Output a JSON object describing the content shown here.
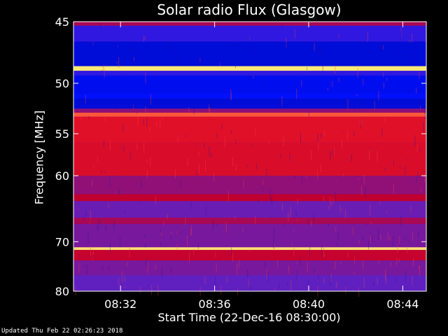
{
  "chart_data": {
    "type": "heatmap",
    "title": "Solar radio Flux (Glasgow)",
    "xlabel": "Start Time (22-Dec-16 08:30:00)",
    "ylabel": "Frequency [MHz]",
    "x_ticks": [
      "08:32",
      "08:36",
      "08:40",
      "08:44"
    ],
    "x_tick_minutes": [
      2,
      6,
      10,
      14
    ],
    "xlim_minutes": [
      0,
      15
    ],
    "y_ticks": [
      45,
      50,
      55,
      60,
      70,
      80
    ],
    "ylim": [
      45,
      80
    ],
    "y_scale": "reciprocal",
    "grid": false,
    "colormap": [
      "#000060",
      "#0010ff",
      "#6020c0",
      "#c00030",
      "#ff2020",
      "#ffff80"
    ],
    "bands": [
      {
        "from": 45.0,
        "to": 45.3,
        "level": 0.55
      },
      {
        "from": 45.3,
        "to": 46.5,
        "level": 0.3
      },
      {
        "from": 46.5,
        "to": 48.5,
        "level": 0.15
      },
      {
        "from": 48.5,
        "to": 48.9,
        "level": 0.98
      },
      {
        "from": 48.9,
        "to": 49.3,
        "level": 0.3
      },
      {
        "from": 49.3,
        "to": 51.0,
        "level": 0.18
      },
      {
        "from": 51.0,
        "to": 51.4,
        "level": 0.2
      },
      {
        "from": 51.4,
        "to": 52.4,
        "level": 0.15
      },
      {
        "from": 52.4,
        "to": 52.8,
        "level": 0.5
      },
      {
        "from": 52.8,
        "to": 53.2,
        "level": 0.85
      },
      {
        "from": 53.2,
        "to": 56.0,
        "level": 0.7
      },
      {
        "from": 56.0,
        "to": 60.0,
        "level": 0.68
      },
      {
        "from": 60.0,
        "to": 62.5,
        "level": 0.5
      },
      {
        "from": 62.5,
        "to": 63.5,
        "level": 0.6
      },
      {
        "from": 63.5,
        "to": 66.0,
        "level": 0.42
      },
      {
        "from": 66.0,
        "to": 67.0,
        "level": 0.55
      },
      {
        "from": 67.0,
        "to": 71.0,
        "level": 0.45
      },
      {
        "from": 71.0,
        "to": 71.5,
        "level": 0.97
      },
      {
        "from": 71.5,
        "to": 73.5,
        "level": 0.62
      },
      {
        "from": 73.5,
        "to": 76.5,
        "level": 0.45
      },
      {
        "from": 76.5,
        "to": 80.0,
        "level": 0.4
      }
    ]
  },
  "footer_text": "Updated Thu Feb 22 02:26:23 2018"
}
